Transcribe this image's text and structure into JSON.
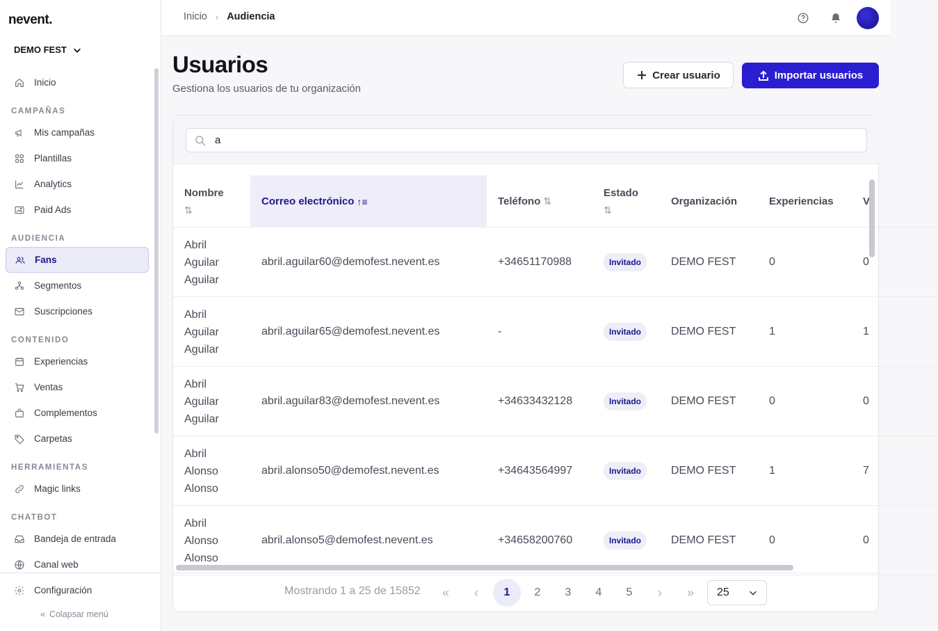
{
  "brand": {
    "logo": "nevent.",
    "organization": "DEMO FEST"
  },
  "sidebar": {
    "items": [
      {
        "type": "item",
        "label": "Inicio",
        "icon": "home-icon"
      },
      {
        "type": "section",
        "label": "CAMPAÑAS"
      },
      {
        "type": "item",
        "label": "Mis campañas",
        "icon": "megaphone-icon"
      },
      {
        "type": "item",
        "label": "Plantillas",
        "icon": "grid-icon"
      },
      {
        "type": "item",
        "label": "Analytics",
        "icon": "chart-line-icon"
      },
      {
        "type": "item",
        "label": "Paid Ads",
        "icon": "image-icon"
      },
      {
        "type": "section",
        "label": "AUDIENCIA"
      },
      {
        "type": "item",
        "label": "Fans",
        "icon": "users-icon",
        "active": true
      },
      {
        "type": "item",
        "label": "Segmentos",
        "icon": "segments-icon"
      },
      {
        "type": "item",
        "label": "Suscripciones",
        "icon": "mail-icon"
      },
      {
        "type": "section",
        "label": "CONTENIDO"
      },
      {
        "type": "item",
        "label": "Experiencias",
        "icon": "calendar-icon"
      },
      {
        "type": "item",
        "label": "Ventas",
        "icon": "cart-icon"
      },
      {
        "type": "item",
        "label": "Complementos",
        "icon": "bag-icon"
      },
      {
        "type": "item",
        "label": "Carpetas",
        "icon": "tag-icon"
      },
      {
        "type": "section",
        "label": "HERRAMIENTAS"
      },
      {
        "type": "item",
        "label": "Magic links",
        "icon": "link-icon"
      },
      {
        "type": "section",
        "label": "CHATBOT"
      },
      {
        "type": "item",
        "label": "Bandeja de entrada",
        "icon": "inbox-icon"
      },
      {
        "type": "item",
        "label": "Canal web",
        "icon": "globe-icon"
      }
    ],
    "settings_label": "Configuración",
    "collapse_label": "Colapsar menú"
  },
  "header": {
    "breadcrumb": [
      "Inicio",
      "Audiencia"
    ],
    "icons": [
      "help-icon",
      "bell-icon"
    ]
  },
  "page": {
    "title": "Usuarios",
    "subtitle": "Gestiona los usuarios de tu organización",
    "create_label": "Crear usuario",
    "import_label": "Importar usuarios"
  },
  "search": {
    "value": "a",
    "placeholder": ""
  },
  "table": {
    "columns": [
      {
        "name_line1": "Nombre",
        "sort": "none"
      },
      {
        "label": "Correo electrónico",
        "sort": "asc"
      },
      {
        "label": "Teléfono",
        "sort": "none"
      },
      {
        "name_line1": "Estado",
        "sort": "none"
      },
      {
        "label": "Organización"
      },
      {
        "label": "Experiencias"
      },
      {
        "label": "V"
      }
    ],
    "rows": [
      {
        "name": [
          "Abril",
          "Aguilar",
          "Aguilar"
        ],
        "email": "abril.aguilar60@demofest.nevent.es",
        "phone": "+34651170988",
        "status": "Invitado",
        "org": "DEMO FEST",
        "experiences": "0",
        "v": "0"
      },
      {
        "name": [
          "Abril",
          "Aguilar",
          "Aguilar"
        ],
        "email": "abril.aguilar65@demofest.nevent.es",
        "phone": "-",
        "status": "Invitado",
        "org": "DEMO FEST",
        "experiences": "1",
        "v": "1"
      },
      {
        "name": [
          "Abril",
          "Aguilar",
          "Aguilar"
        ],
        "email": "abril.aguilar83@demofest.nevent.es",
        "phone": "+34633432128",
        "status": "Invitado",
        "org": "DEMO FEST",
        "experiences": "0",
        "v": "0"
      },
      {
        "name": [
          "Abril",
          "Alonso",
          "Alonso"
        ],
        "email": "abril.alonso50@demofest.nevent.es",
        "phone": "+34643564997",
        "status": "Invitado",
        "org": "DEMO FEST",
        "experiences": "1",
        "v": "7"
      },
      {
        "name": [
          "Abril",
          "Alonso",
          "Alonso"
        ],
        "email": "abril.alonso5@demofest.nevent.es",
        "phone": "+34658200760",
        "status": "Invitado",
        "org": "DEMO FEST",
        "experiences": "0",
        "v": "0"
      }
    ]
  },
  "pagination": {
    "info": "Mostrando 1 a 25 de 15852",
    "pages": [
      "1",
      "2",
      "3",
      "4",
      "5"
    ],
    "current": "1",
    "page_size": "25",
    "first": "«",
    "prev": "‹",
    "next": "›",
    "last": "»"
  },
  "colors": {
    "accent": "#2a1ed0",
    "active_bg": "#ecebf8",
    "active_text": "#1c178c"
  }
}
